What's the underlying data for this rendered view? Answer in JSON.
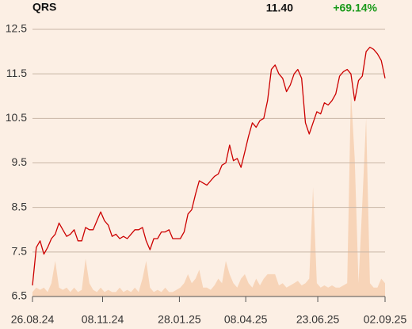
{
  "chart_data": {
    "type": "line",
    "title": "QRS",
    "price_label": "11.40",
    "change_label": "+69.14%",
    "x": [
      "26.08.24",
      "30.08.24",
      "03.09.24",
      "07.09.24",
      "11.09.24",
      "15.09.24",
      "19.09.24",
      "23.09.24",
      "27.09.24",
      "01.10.24",
      "05.10.24",
      "09.10.24",
      "13.10.24",
      "17.10.24",
      "21.10.24",
      "25.10.24",
      "29.10.24",
      "02.11.24",
      "06.11.24",
      "10.11.24",
      "14.11.24",
      "18.11.24",
      "22.11.24",
      "26.11.24",
      "30.11.24",
      "04.12.24",
      "08.12.24",
      "12.12.24",
      "16.12.24",
      "20.12.24",
      "24.12.24",
      "28.12.24",
      "01.01.25",
      "05.01.25",
      "09.01.25",
      "13.01.25",
      "17.01.25",
      "21.01.25",
      "25.01.25",
      "29.01.25",
      "02.02.25",
      "06.02.25",
      "10.02.25",
      "14.02.25",
      "18.02.25",
      "22.02.25",
      "26.02.25",
      "02.03.25",
      "06.03.25",
      "10.03.25",
      "14.03.25",
      "18.03.25",
      "22.03.25",
      "26.03.25",
      "30.03.25",
      "03.04.25",
      "07.04.25",
      "11.04.25",
      "15.04.25",
      "19.04.25",
      "23.04.25",
      "27.04.25",
      "01.05.25",
      "05.05.25",
      "09.05.25",
      "13.05.25",
      "17.05.25",
      "21.05.25",
      "25.05.25",
      "29.05.25",
      "02.06.25",
      "06.06.25",
      "10.06.25",
      "14.06.25",
      "18.06.25",
      "22.06.25",
      "26.06.25",
      "30.06.25",
      "04.07.25",
      "08.07.25",
      "12.07.25",
      "16.07.25",
      "20.07.25",
      "24.07.25",
      "28.07.25",
      "01.08.25",
      "05.08.25",
      "09.08.25",
      "13.08.25",
      "17.08.25",
      "21.08.25",
      "25.08.25",
      "29.08.25",
      "02.09.25"
    ],
    "series": [
      {
        "color": "#cc0000",
        "values": [
          6.75,
          7.6,
          7.75,
          7.45,
          7.6,
          7.8,
          7.9,
          8.15,
          8.0,
          7.85,
          7.9,
          8.0,
          7.75,
          7.75,
          8.05,
          8.0,
          8.0,
          8.2,
          8.4,
          8.2,
          8.1,
          7.85,
          7.9,
          7.8,
          7.85,
          7.8,
          7.9,
          8.0,
          8.0,
          8.05,
          7.75,
          7.55,
          7.8,
          7.8,
          7.95,
          7.95,
          8.0,
          7.8,
          7.8,
          7.8,
          7.95,
          8.35,
          8.45,
          8.8,
          9.1,
          9.05,
          9.0,
          9.1,
          9.2,
          9.25,
          9.45,
          9.5,
          9.9,
          9.55,
          9.6,
          9.4,
          9.75,
          10.1,
          10.4,
          10.3,
          10.45,
          10.5,
          10.9,
          11.6,
          11.7,
          11.5,
          11.4,
          11.1,
          11.25,
          11.5,
          11.6,
          11.4,
          10.4,
          10.15,
          10.4,
          10.65,
          10.6,
          10.85,
          10.8,
          10.9,
          11.05,
          11.45,
          11.55,
          11.6,
          11.5,
          10.9,
          11.35,
          11.45,
          12.0,
          12.1,
          12.05,
          11.95,
          11.8,
          11.4
        ]
      },
      {
        "color": "#f7d4b8",
        "area": true,
        "values": [
          6.6,
          6.7,
          6.65,
          6.7,
          6.6,
          6.8,
          7.3,
          6.7,
          6.65,
          6.7,
          6.6,
          6.7,
          6.6,
          6.65,
          7.35,
          6.8,
          6.65,
          6.6,
          6.7,
          6.6,
          6.65,
          6.6,
          6.6,
          6.7,
          6.6,
          6.65,
          6.6,
          6.7,
          6.6,
          6.9,
          7.3,
          6.7,
          6.6,
          6.65,
          6.6,
          6.7,
          6.6,
          6.6,
          6.65,
          6.7,
          6.8,
          7.0,
          6.8,
          6.9,
          7.1,
          6.7,
          6.7,
          6.65,
          6.75,
          6.9,
          6.8,
          7.3,
          7.0,
          6.8,
          6.7,
          6.9,
          7.0,
          6.8,
          6.7,
          6.9,
          6.75,
          6.9,
          7.0,
          7.0,
          7.0,
          6.75,
          6.8,
          6.7,
          6.75,
          6.8,
          6.85,
          6.75,
          6.8,
          6.9,
          8.95,
          6.8,
          6.7,
          6.75,
          6.7,
          6.75,
          6.7,
          6.7,
          6.75,
          6.8,
          11.1,
          9.6,
          6.8,
          8.6,
          10.5,
          6.8,
          6.7,
          6.7,
          6.9,
          6.8
        ]
      }
    ],
    "xlim": [
      "26.08.24",
      "02.09.25"
    ],
    "xticks": [
      "26.08.24",
      "08.11.24",
      "28.01.25",
      "08.04.25",
      "23.06.25",
      "02.09.25"
    ],
    "ylim": [
      6.5,
      12.5
    ],
    "yticks": [
      6.5,
      7.5,
      8.5,
      9.5,
      10.5,
      11.5,
      12.5
    ],
    "grid": true
  }
}
